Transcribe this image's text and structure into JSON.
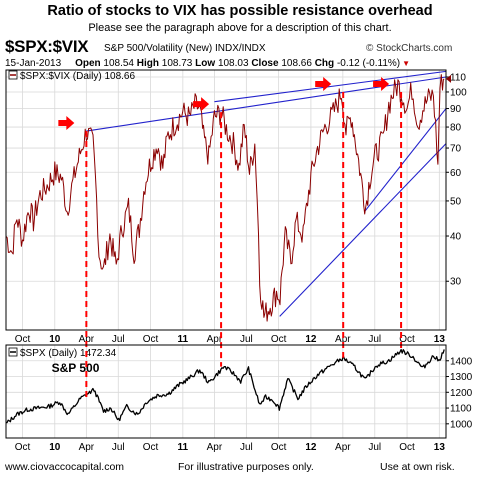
{
  "header": {
    "title": "Ratio of stocks to VIX has possible resistance overhead",
    "subtitle": "Please see the paragraph above for a description of this chart.",
    "symbol": "$SPX:$VIX",
    "symbol_desc": "S&P 500/Volatility (New)  INDX/INDX",
    "source": "© StockCharts.com",
    "date": "15-Jan-2013",
    "open_label": "Open",
    "open": "108.54",
    "high_label": "High",
    "high": "108.73",
    "low_label": "Low",
    "low": "108.03",
    "close_label": "Close",
    "close": "108.66",
    "chg_label": "Chg",
    "chg": "-0.12 (-0.11%)"
  },
  "footer": {
    "left": "www.ciovaccocapital.com",
    "mid": "For illustrative purposes only.",
    "right": "Use at own risk."
  },
  "colors": {
    "ratio_line": "#8b0000",
    "spx_line": "#000000",
    "trendline": "#2222cc",
    "marker": "#ff0000",
    "grid": "#d9d9d9"
  },
  "chart_data": [
    {
      "type": "line",
      "legend": "$SPX:$VIX (Daily) 108.66",
      "y_scale": "log",
      "ylim": [
        22,
        115
      ],
      "y_ticks": [
        30,
        40,
        50,
        60,
        70,
        80,
        90,
        100,
        110
      ],
      "x_ticks": [
        "Oct",
        "10",
        "Apr",
        "Jul",
        "Oct",
        "11",
        "Apr",
        "Jul",
        "Oct",
        "12",
        "Apr",
        "Jul",
        "Oct",
        "13"
      ],
      "x_ticks_bold": [
        "10",
        "11",
        "12",
        "13"
      ],
      "xlim": [
        "2009-08-15",
        "2013-01-20"
      ],
      "grid": true,
      "series": [
        {
          "name": "$SPX:$VIX",
          "x": [
            "2009-08-15",
            "2009-09-01",
            "2009-09-15",
            "2009-10-01",
            "2009-10-20",
            "2009-11-01",
            "2009-11-20",
            "2009-12-10",
            "2010-01-01",
            "2010-01-20",
            "2010-02-05",
            "2010-02-25",
            "2010-03-15",
            "2010-04-01",
            "2010-04-20",
            "2010-05-07",
            "2010-05-20",
            "2010-06-07",
            "2010-06-25",
            "2010-07-12",
            "2010-07-30",
            "2010-08-15",
            "2010-08-30",
            "2010-09-15",
            "2010-10-01",
            "2010-10-20",
            "2010-11-05",
            "2010-11-20",
            "2010-12-10",
            "2011-01-01",
            "2011-01-20",
            "2011-02-05",
            "2011-02-18",
            "2011-03-01",
            "2011-03-16",
            "2011-04-01",
            "2011-04-20",
            "2011-05-05",
            "2011-05-25",
            "2011-06-10",
            "2011-06-25",
            "2011-07-10",
            "2011-07-25",
            "2011-08-08",
            "2011-08-20",
            "2011-09-10",
            "2011-09-25",
            "2011-10-05",
            "2011-10-20",
            "2011-11-05",
            "2011-11-20",
            "2011-12-10",
            "2012-01-01",
            "2012-01-20",
            "2012-02-10",
            "2012-03-01",
            "2012-03-15",
            "2012-03-28",
            "2012-04-10",
            "2012-04-25",
            "2012-05-10",
            "2012-05-25",
            "2012-06-05",
            "2012-06-20",
            "2012-07-05",
            "2012-07-25",
            "2012-08-10",
            "2012-08-20",
            "2012-09-05",
            "2012-09-15",
            "2012-10-01",
            "2012-10-15",
            "2012-11-01",
            "2012-11-15",
            "2012-12-01",
            "2012-12-15",
            "2012-12-28",
            "2013-01-03",
            "2013-01-10",
            "2013-01-15"
          ],
          "values": [
            40,
            36,
            45,
            39,
            48,
            44,
            52,
            55,
            60,
            58,
            47,
            58,
            68,
            78,
            72,
            36,
            32,
            40,
            33,
            42,
            48,
            36,
            42,
            56,
            64,
            72,
            62,
            76,
            82,
            88,
            85,
            92,
            90,
            75,
            66,
            85,
            88,
            79,
            72,
            62,
            80,
            60,
            72,
            30,
            24,
            26,
            28,
            27,
            40,
            34,
            44,
            40,
            58,
            70,
            80,
            86,
            92,
            100,
            78,
            86,
            70,
            56,
            48,
            60,
            68,
            74,
            92,
            98,
            105,
            100,
            90,
            102,
            82,
            90,
            96,
            98,
            62,
            103,
            108,
            108.66
          ]
        }
      ],
      "trendlines": [
        {
          "from": [
            "2010-04-01",
            78
          ],
          "to": [
            "2013-01-20",
            110
          ]
        },
        {
          "from": [
            "2011-04-01",
            94
          ],
          "to": [
            "2013-01-20",
            114
          ]
        },
        {
          "from": [
            "2011-10-04",
            24
          ],
          "to": [
            "2013-01-20",
            72
          ]
        },
        {
          "from": [
            "2012-06-04",
            47
          ],
          "to": [
            "2013-01-20",
            90
          ]
        }
      ],
      "markers": [
        "2010-04-01",
        "2011-04-20",
        "2012-04-02",
        "2012-09-14"
      ]
    },
    {
      "type": "line",
      "legend": "$SPX (Daily) 1472.34",
      "label": "S&P 500",
      "ylim": [
        910,
        1500
      ],
      "y_ticks": [
        1000,
        1100,
        1200,
        1300,
        1400
      ],
      "x_ticks": [
        "Oct",
        "10",
        "Apr",
        "Jul",
        "Oct",
        "11",
        "Apr",
        "Jul",
        "Oct",
        "12",
        "Apr",
        "Jul",
        "Oct",
        "13"
      ],
      "x_ticks_bold": [
        "10",
        "11",
        "12",
        "13"
      ],
      "xlim": [
        "2009-08-15",
        "2013-01-20"
      ],
      "grid": true,
      "series": [
        {
          "name": "$SPX",
          "x": [
            "2009-08-15",
            "2009-09-15",
            "2009-10-15",
            "2009-11-15",
            "2009-12-15",
            "2010-01-15",
            "2010-02-08",
            "2010-03-15",
            "2010-04-23",
            "2010-05-20",
            "2010-06-10",
            "2010-07-02",
            "2010-07-25",
            "2010-08-25",
            "2010-09-20",
            "2010-10-20",
            "2010-11-20",
            "2010-12-20",
            "2011-01-20",
            "2011-02-18",
            "2011-03-16",
            "2011-04-29",
            "2011-05-25",
            "2011-06-15",
            "2011-07-07",
            "2011-08-08",
            "2011-08-25",
            "2011-09-15",
            "2011-10-03",
            "2011-10-27",
            "2011-11-25",
            "2011-12-20",
            "2012-01-20",
            "2012-02-20",
            "2012-04-02",
            "2012-05-05",
            "2012-06-04",
            "2012-07-05",
            "2012-08-10",
            "2012-09-14",
            "2012-10-15",
            "2012-11-15",
            "2012-12-15",
            "2012-12-31",
            "2013-01-15"
          ],
          "values": [
            1000,
            1060,
            1090,
            1100,
            1110,
            1140,
            1060,
            1160,
            1217,
            1080,
            1100,
            1022,
            1110,
            1060,
            1140,
            1180,
            1190,
            1245,
            1290,
            1340,
            1260,
            1363,
            1320,
            1270,
            1350,
            1120,
            1170,
            1150,
            1099,
            1285,
            1160,
            1240,
            1310,
            1360,
            1419,
            1360,
            1278,
            1370,
            1400,
            1465,
            1430,
            1353,
            1430,
            1400,
            1472
          ]
        }
      ]
    }
  ]
}
